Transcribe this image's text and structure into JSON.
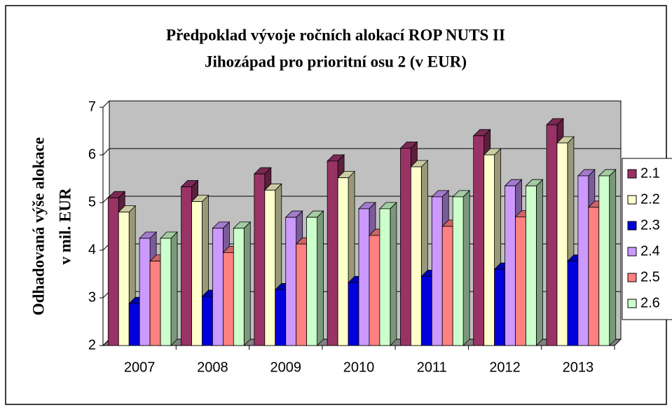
{
  "chart_data": {
    "type": "bar3d",
    "title_lines": [
      "Předpoklad vývoje ročních alokací ROP NUTS II",
      "Jihozápad pro prioritní osu 2 (v EUR)"
    ],
    "y_label_lines": [
      "Odhadovaná výše alokace",
      "v mil. EUR"
    ],
    "categories": [
      "2007",
      "2008",
      "2009",
      "2010",
      "2011",
      "2012",
      "2013"
    ],
    "series": [
      {
        "name": "2.1",
        "color": "#993366",
        "values": [
          5.1,
          5.33,
          5.6,
          5.87,
          6.14,
          6.4,
          6.63
        ]
      },
      {
        "name": "2.2",
        "color": "#ffffcc",
        "values": [
          4.8,
          5.02,
          5.26,
          5.52,
          5.75,
          6.0,
          6.25
        ]
      },
      {
        "name": "2.3",
        "color": "#0000dd",
        "values": [
          2.88,
          3.03,
          3.17,
          3.32,
          3.45,
          3.6,
          3.77
        ]
      },
      {
        "name": "2.4",
        "color": "#cc99ff",
        "values": [
          4.25,
          4.46,
          4.69,
          4.87,
          5.12,
          5.35,
          5.56
        ]
      },
      {
        "name": "2.5",
        "color": "#ff8080",
        "values": [
          3.77,
          3.95,
          4.13,
          4.31,
          4.5,
          4.7,
          4.9
        ]
      },
      {
        "name": "2.6",
        "color": "#ccffcc",
        "values": [
          4.25,
          4.46,
          4.69,
          4.87,
          5.12,
          5.35,
          5.56
        ]
      }
    ],
    "ylim": [
      2,
      7
    ],
    "yticks": [
      2,
      3,
      4,
      5,
      6,
      7
    ],
    "grid": true,
    "legend": "right"
  }
}
